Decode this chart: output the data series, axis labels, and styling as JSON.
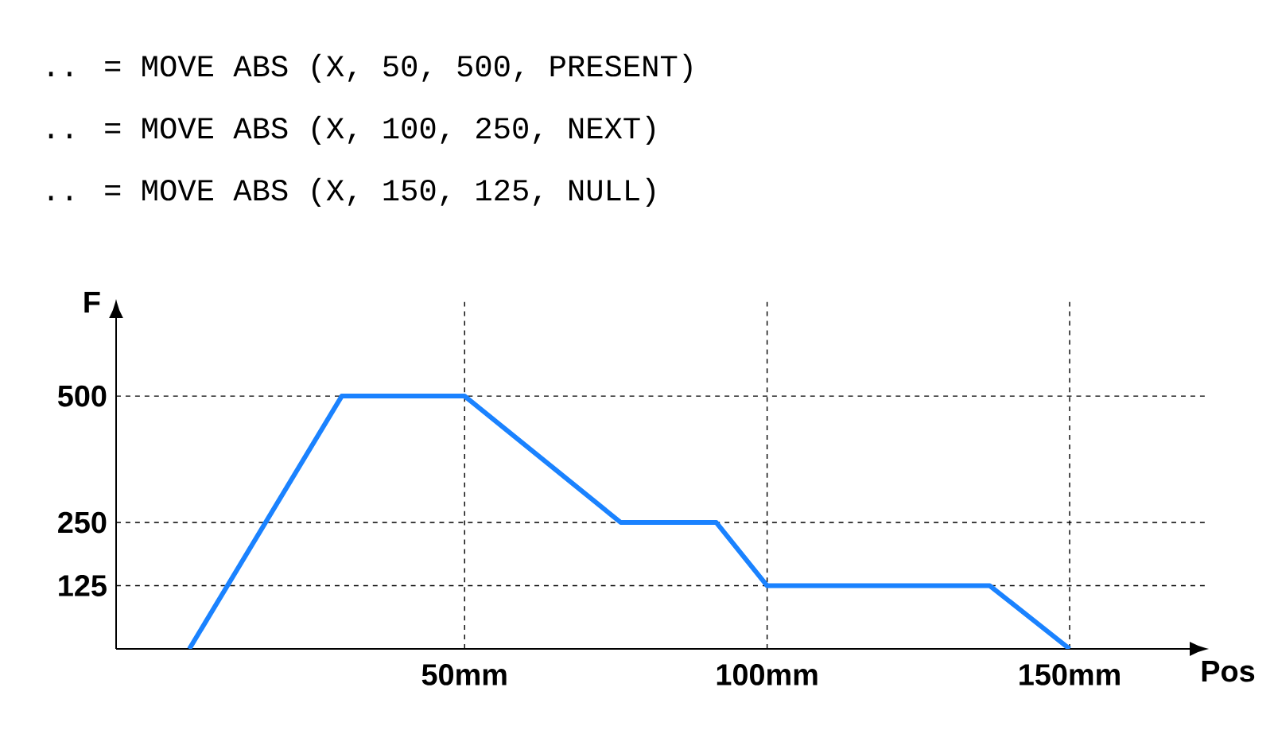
{
  "chart_data": {
    "type": "line",
    "annotations": [
      ".. = MOVE ABS (X, 50, 500, PRESENT)",
      ".. = MOVE ABS (X, 100, 250, NEXT)",
      ".. = MOVE ABS (X, 150, 125, NULL)"
    ],
    "xlabel": "Pos",
    "ylabel": "F",
    "x": [
      4.5,
      29.7,
      50,
      75.8,
      91.6,
      100,
      136.8,
      150
    ],
    "values": [
      0,
      500,
      500,
      250,
      250,
      125,
      125,
      0
    ],
    "color": "#1a82ff",
    "line_style": "solid",
    "xlim": [
      -7.6,
      173
    ],
    "ylim": [
      0,
      692
    ],
    "xticks": [
      {
        "value": 50,
        "label": "50mm"
      },
      {
        "value": 100,
        "label": "100mm"
      },
      {
        "value": 150,
        "label": "150mm"
      }
    ],
    "yticks": [
      125,
      250,
      500
    ],
    "grid": true
  }
}
